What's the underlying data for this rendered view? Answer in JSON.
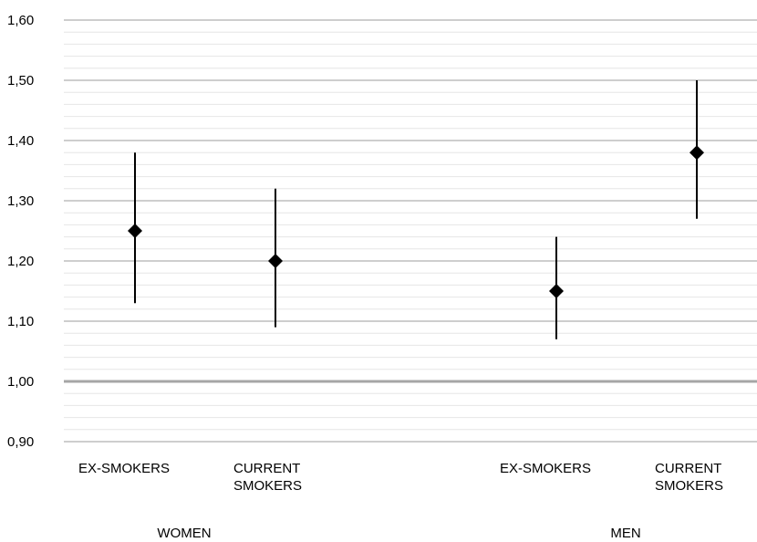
{
  "chart_data": {
    "type": "scatter",
    "title": "",
    "xlabel": "",
    "ylabel": "",
    "ylim": [
      0.9,
      1.6
    ],
    "y_ticks": [
      "0,90",
      "1,00",
      "1,10",
      "1,20",
      "1,30",
      "1,40",
      "1,50",
      "1,60"
    ],
    "y_tick_values": [
      0.9,
      1.0,
      1.1,
      1.2,
      1.3,
      1.4,
      1.5,
      1.6
    ],
    "reference_line": 1.0,
    "grid": true,
    "minor_grid_step": 0.02,
    "categories": [
      {
        "lines": [
          "EX-SMOKERS"
        ],
        "group": "WOMEN"
      },
      {
        "lines": [
          "CURRENT",
          "SMOKERS"
        ],
        "group": "WOMEN"
      },
      {
        "lines": [
          "EX-SMOKERS"
        ],
        "group": "MEN"
      },
      {
        "lines": [
          "CURRENT",
          "SMOKERS"
        ],
        "group": "MEN"
      }
    ],
    "groups": [
      "WOMEN",
      "MEN"
    ],
    "points": [
      {
        "estimate": 1.25,
        "lower": 1.13,
        "upper": 1.38
      },
      {
        "estimate": 1.2,
        "lower": 1.09,
        "upper": 1.32
      },
      {
        "estimate": 1.15,
        "lower": 1.07,
        "upper": 1.24
      },
      {
        "estimate": 1.38,
        "lower": 1.27,
        "upper": 1.5
      }
    ],
    "colors": {
      "marker": "#000000",
      "major_grid": "#bdbdbd",
      "minor_grid": "#e6e6e6",
      "reference": "#a6a6a6"
    }
  }
}
